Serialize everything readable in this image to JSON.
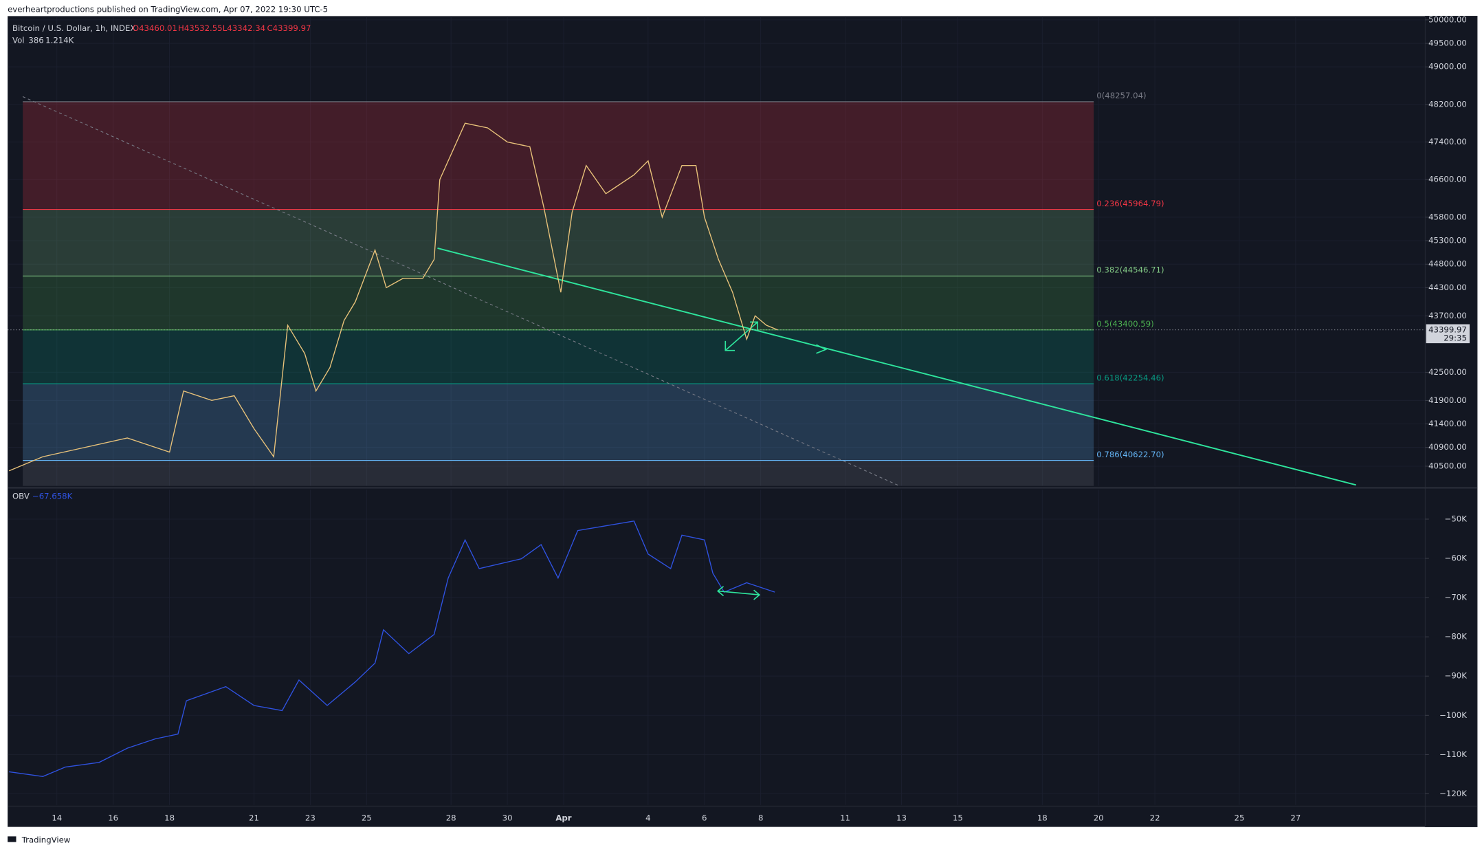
{
  "header": {
    "published": "everheartproductions published on TradingView.com, Apr 07, 2022 19:30 UTC-5",
    "symbol": "Bitcoin / U.S. Dollar, 1h, INDEX",
    "ohlc": [
      "O43460.01",
      "H43532.55",
      "L43342.34",
      "C43399.97"
    ],
    "vol_label": "Vol",
    "vol_length": "386",
    "vol_value": "1.214K",
    "obv_label": "OBV",
    "obv_value": "−67.658K",
    "last_price": "43399.97",
    "countdown": "29:35",
    "brand": "TradingView"
  },
  "chart_data": [
    {
      "type": "line",
      "title": "Bitcoin / U.S. Dollar",
      "x": [
        12.3,
        13.5,
        15,
        16.5,
        18,
        18.5,
        19.5,
        20.3,
        21,
        21.7,
        22.2,
        22.8,
        23.2,
        23.7,
        24.2,
        24.6,
        25.3,
        25.7,
        26.3,
        27,
        27.4,
        27.6,
        28.5,
        29.3,
        30,
        30.8,
        31.3,
        31.9,
        32.3,
        32.8,
        33.5,
        34.5,
        35,
        35.5,
        36.2,
        36.7,
        37,
        37.5,
        38,
        38.5,
        38.8,
        39.2,
        39.6
      ],
      "series": [
        {
          "name": "Bitcoin / U.S. Dollar",
          "color": "#e8c27a",
          "values": [
            40400,
            40700,
            40900,
            41100,
            40800,
            42100,
            41900,
            42000,
            41300,
            40700,
            43500,
            42900,
            42100,
            42600,
            43600,
            44000,
            45100,
            44300,
            44500,
            44500,
            44900,
            46600,
            47800,
            47700,
            47400,
            47300,
            46000,
            44200,
            45900,
            46900,
            46300,
            46700,
            47000,
            45800,
            46900,
            46900,
            45800,
            44900,
            44200,
            43200,
            43700,
            43500,
            43400
          ]
        }
      ],
      "xlim": [
        12.25,
        62.6
      ],
      "xticks": [
        {
          "value": 14,
          "label": "14"
        },
        {
          "value": 16,
          "label": "16"
        },
        {
          "value": 18,
          "label": "18"
        },
        {
          "value": 21,
          "label": "21"
        },
        {
          "value": 23,
          "label": "23"
        },
        {
          "value": 25,
          "label": "25"
        },
        {
          "value": 28,
          "label": "28"
        },
        {
          "value": 30,
          "label": "30"
        },
        {
          "value": 32,
          "label": "Apr"
        },
        {
          "value": 35,
          "label": "4"
        },
        {
          "value": 37,
          "label": "6"
        },
        {
          "value": 39,
          "label": "8"
        },
        {
          "value": 42,
          "label": "11"
        },
        {
          "value": 44,
          "label": "13"
        },
        {
          "value": 46,
          "label": "15"
        },
        {
          "value": 49,
          "label": "18"
        },
        {
          "value": 51,
          "label": "20"
        },
        {
          "value": 53,
          "label": "22"
        },
        {
          "value": 56,
          "label": "25"
        },
        {
          "value": 58,
          "label": "27"
        }
      ],
      "ylim": [
        40080,
        50080
      ],
      "yticks": [
        {
          "value": 50000,
          "label": "50000.00"
        },
        {
          "value": 49500,
          "label": "49500.00"
        },
        {
          "value": 49000,
          "label": "49000.00"
        },
        {
          "value": 48200,
          "label": "48200.00"
        },
        {
          "value": 47400,
          "label": "47400.00"
        },
        {
          "value": 46600,
          "label": "46600.00"
        },
        {
          "value": 45800,
          "label": "45800.00"
        },
        {
          "value": 45300,
          "label": "45300.00"
        },
        {
          "value": 44800,
          "label": "44800.00"
        },
        {
          "value": 44300,
          "label": "44300.00"
        },
        {
          "value": 43700,
          "label": "43700.00"
        },
        {
          "value": 42500,
          "label": "42500.00"
        },
        {
          "value": 41900,
          "label": "41900.00"
        },
        {
          "value": 41400,
          "label": "41400.00"
        },
        {
          "value": 40900,
          "label": "40900.00"
        },
        {
          "value": 40500,
          "label": "40500.00"
        }
      ],
      "last_value": 43399.97,
      "fib_levels": [
        {
          "value": 48257.04,
          "label": "0(48257.04)",
          "color": "#787b86"
        },
        {
          "value": 45964.79,
          "label": "0.236(45964.79)",
          "color": "#f23645"
        },
        {
          "value": 44546.71,
          "label": "0.382(44546.71)",
          "color": "#81c784"
        },
        {
          "value": 43400.59,
          "label": "0.5(43400.59)",
          "color": "#4caf50"
        },
        {
          "value": 42254.46,
          "label": "0.618(42254.46)",
          "color": "#089981"
        },
        {
          "value": 40622.7,
          "label": "0.786(40622.70)",
          "color": "#64b5f6"
        }
      ],
      "grid": true
    },
    {
      "type": "line",
      "title": "OBV",
      "x": [
        12.3,
        13.5,
        14.3,
        15.5,
        16.5,
        17.5,
        18.3,
        18.6,
        20,
        21,
        22,
        22.6,
        23.6,
        24.6,
        25.3,
        25.6,
        26.5,
        27.4,
        27.9,
        28.5,
        29,
        30.5,
        31.2,
        31.8,
        32.5,
        33.5,
        34.5,
        35,
        35.8,
        36.2,
        37,
        37.3,
        37.7,
        38.5,
        39.5
      ],
      "series": [
        {
          "name": "OBV",
          "color": "#2f52e0",
          "values": [
            -114400,
            -115600,
            -113200,
            -112000,
            -108400,
            -106000,
            -104800,
            -96300,
            -92700,
            -97500,
            -98800,
            -91000,
            -97500,
            -91500,
            -86700,
            -78200,
            -84300,
            -79400,
            -65000,
            -55300,
            -62600,
            -60100,
            -56500,
            -65000,
            -52900,
            -51700,
            -50500,
            -58900,
            -62600,
            -54100,
            -55300,
            -63800,
            -68600,
            -66200,
            -68600
          ]
        }
      ],
      "ylim": [
        -122900,
        -42500
      ],
      "yticks": [
        {
          "value": -50000,
          "label": "−50K"
        },
        {
          "value": -60000,
          "label": "−60K"
        },
        {
          "value": -70000,
          "label": "−70K"
        },
        {
          "value": -80000,
          "label": "−80K"
        },
        {
          "value": -90000,
          "label": "−90K"
        },
        {
          "value": -100000,
          "label": "−100K"
        },
        {
          "value": -110000,
          "label": "−110K"
        },
        {
          "value": -120000,
          "label": "−120K"
        }
      ],
      "grid": true
    }
  ]
}
